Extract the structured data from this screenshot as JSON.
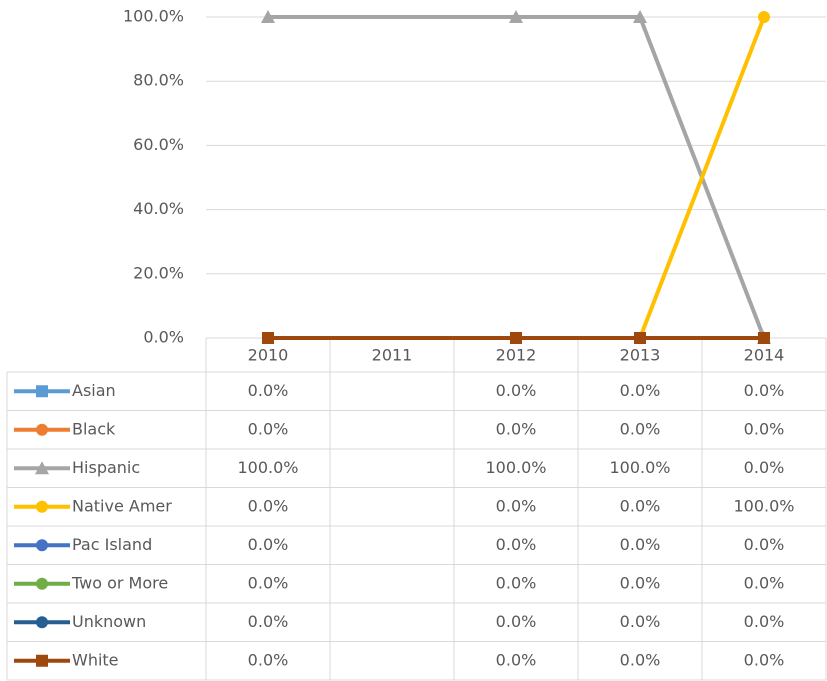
{
  "chart_data": {
    "type": "line",
    "categories": [
      "2010",
      "2011",
      "2012",
      "2013",
      "2014"
    ],
    "ylim": [
      0,
      100
    ],
    "yticks": [
      {
        "value": 0,
        "label": "0.0%"
      },
      {
        "value": 20,
        "label": "20.0%"
      },
      {
        "value": 40,
        "label": "40.0%"
      },
      {
        "value": 60,
        "label": "60.0%"
      },
      {
        "value": 80,
        "label": "80.0%"
      },
      {
        "value": 100,
        "label": "100.0%"
      }
    ],
    "grid": true,
    "connect_gaps": true,
    "series": [
      {
        "name": "Asian",
        "color": "#5b9bd5",
        "marker": "square",
        "values": [
          0,
          null,
          0,
          0,
          0
        ],
        "value_labels": [
          "0.0%",
          null,
          "0.0%",
          "0.0%",
          "0.0%"
        ]
      },
      {
        "name": "Black",
        "color": "#ed7d31",
        "marker": "circle",
        "values": [
          0,
          null,
          0,
          0,
          0
        ],
        "value_labels": [
          "0.0%",
          null,
          "0.0%",
          "0.0%",
          "0.0%"
        ]
      },
      {
        "name": "Hispanic",
        "color": "#a5a5a5",
        "marker": "triangle",
        "values": [
          100,
          null,
          100,
          100,
          0
        ],
        "value_labels": [
          "100.0%",
          null,
          "100.0%",
          "100.0%",
          "0.0%"
        ]
      },
      {
        "name": "Native Amer",
        "color": "#ffc000",
        "marker": "circle",
        "values": [
          0,
          null,
          0,
          0,
          100
        ],
        "value_labels": [
          "0.0%",
          null,
          "0.0%",
          "0.0%",
          "100.0%"
        ]
      },
      {
        "name": "Pac Island",
        "color": "#4472c4",
        "marker": "circle",
        "values": [
          0,
          null,
          0,
          0,
          0
        ],
        "value_labels": [
          "0.0%",
          null,
          "0.0%",
          "0.0%",
          "0.0%"
        ]
      },
      {
        "name": "Two or More",
        "color": "#70ad47",
        "marker": "circle",
        "values": [
          0,
          null,
          0,
          0,
          0
        ],
        "value_labels": [
          "0.0%",
          null,
          "0.0%",
          "0.0%",
          "0.0%"
        ]
      },
      {
        "name": "Unknown",
        "color": "#255e91",
        "marker": "circle",
        "values": [
          0,
          null,
          0,
          0,
          0
        ],
        "value_labels": [
          "0.0%",
          null,
          "0.0%",
          "0.0%",
          "0.0%"
        ]
      },
      {
        "name": "White",
        "color": "#9e480e",
        "marker": "square",
        "values": [
          0,
          null,
          0,
          0,
          0
        ],
        "value_labels": [
          "0.0%",
          null,
          "0.0%",
          "0.0%",
          "0.0%"
        ]
      }
    ]
  }
}
